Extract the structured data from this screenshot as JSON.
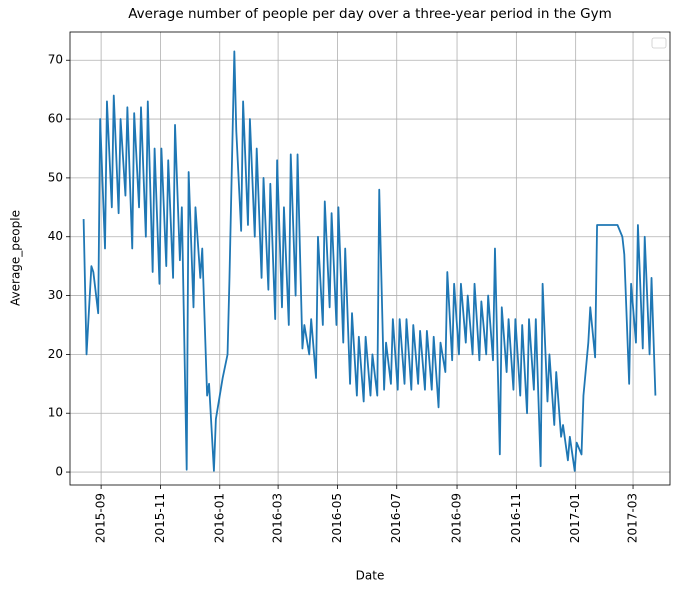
{
  "chart_data": {
    "type": "line",
    "title": "Average number of people per day over a three-year period in the Gym",
    "x_label": "Date",
    "y_label": "Average_people",
    "x": [
      "2015-08-14",
      "2015-08-17",
      "2015-08-22",
      "2015-08-24",
      "2015-08-29",
      "2015-08-31",
      "2015-09-05",
      "2015-09-07",
      "2015-09-12",
      "2015-09-14",
      "2015-09-19",
      "2015-09-21",
      "2015-09-26",
      "2015-09-28",
      "2015-10-03",
      "2015-10-05",
      "2015-10-10",
      "2015-10-12",
      "2015-10-17",
      "2015-10-19",
      "2015-10-24",
      "2015-10-26",
      "2015-10-31",
      "2015-11-02",
      "2015-11-07",
      "2015-11-09",
      "2015-11-14",
      "2015-11-16",
      "2015-11-21",
      "2015-11-23",
      "2015-11-28",
      "2015-11-30",
      "2015-12-05",
      "2015-12-07",
      "2015-12-12",
      "2015-12-14",
      "2015-12-19",
      "2015-12-21",
      "2015-12-26",
      "2015-12-28",
      "2016-01-02",
      "2016-01-04",
      "2016-01-09",
      "2016-01-11",
      "2016-01-16",
      "2016-01-18",
      "2016-01-23",
      "2016-01-25",
      "2016-01-30",
      "2016-02-01",
      "2016-02-06",
      "2016-02-08",
      "2016-02-13",
      "2016-02-15",
      "2016-02-20",
      "2016-02-22",
      "2016-02-27",
      "2016-02-29",
      "2016-03-05",
      "2016-03-07",
      "2016-03-12",
      "2016-03-14",
      "2016-03-19",
      "2016-03-21",
      "2016-03-26",
      "2016-03-28",
      "2016-04-02",
      "2016-04-04",
      "2016-04-09",
      "2016-04-11",
      "2016-04-16",
      "2016-04-18",
      "2016-04-23",
      "2016-04-25",
      "2016-04-30",
      "2016-05-02",
      "2016-05-07",
      "2016-05-09",
      "2016-05-14",
      "2016-05-16",
      "2016-05-21",
      "2016-05-23",
      "2016-05-28",
      "2016-05-30",
      "2016-06-04",
      "2016-06-06",
      "2016-06-11",
      "2016-06-13",
      "2016-06-18",
      "2016-06-20",
      "2016-06-25",
      "2016-06-27",
      "2016-07-02",
      "2016-07-04",
      "2016-07-09",
      "2016-07-11",
      "2016-07-16",
      "2016-07-18",
      "2016-07-23",
      "2016-07-25",
      "2016-07-30",
      "2016-08-01",
      "2016-08-06",
      "2016-08-08",
      "2016-08-13",
      "2016-08-15",
      "2016-08-20",
      "2016-08-22",
      "2016-08-27",
      "2016-08-29",
      "2016-09-03",
      "2016-09-05",
      "2016-09-10",
      "2016-09-12",
      "2016-09-17",
      "2016-09-19",
      "2016-09-24",
      "2016-09-26",
      "2016-10-01",
      "2016-10-03",
      "2016-10-08",
      "2016-10-10",
      "2016-10-15",
      "2016-10-17",
      "2016-10-22",
      "2016-10-24",
      "2016-10-29",
      "2016-10-31",
      "2016-11-05",
      "2016-11-07",
      "2016-11-12",
      "2016-11-14",
      "2016-11-19",
      "2016-11-21",
      "2016-11-26",
      "2016-11-28",
      "2016-12-03",
      "2016-12-05",
      "2016-12-10",
      "2016-12-12",
      "2016-12-17",
      "2016-12-19",
      "2016-12-24",
      "2016-12-26",
      "2016-12-31",
      "2017-01-02",
      "2017-01-07",
      "2017-01-09",
      "2017-01-14",
      "2017-01-16",
      "2017-01-21",
      "2017-01-23",
      "2017-01-28",
      "2017-01-30",
      "2017-02-04",
      "2017-02-06",
      "2017-02-11",
      "2017-02-13",
      "2017-02-18",
      "2017-02-20",
      "2017-02-25",
      "2017-02-27",
      "2017-03-04",
      "2017-03-06",
      "2017-03-11",
      "2017-03-13",
      "2017-03-18",
      "2017-03-20",
      "2017-03-24"
    ],
    "series": [
      {
        "name": "Average_people",
        "color": "#1f77b4",
        "values": [
          43,
          20,
          35,
          34,
          27,
          60,
          38,
          63,
          45,
          64,
          44,
          60,
          47,
          62,
          38,
          61,
          45,
          62,
          40,
          63,
          34,
          55,
          32,
          55,
          35,
          53,
          33,
          59,
          36,
          45,
          0.4,
          51,
          28,
          45,
          33,
          38,
          13,
          15,
          0.2,
          9,
          14,
          16,
          20,
          33,
          71.5,
          58,
          41,
          63,
          42,
          60,
          40,
          55,
          33,
          50,
          31,
          49,
          26,
          53,
          28,
          45,
          25,
          54,
          30,
          54,
          21,
          25,
          20,
          26,
          16,
          40,
          25,
          46,
          28,
          44,
          25,
          45,
          22,
          38,
          15,
          27,
          13,
          23,
          12,
          23,
          13,
          20,
          13,
          48,
          14,
          22,
          15,
          26,
          14,
          26,
          15,
          26,
          14,
          25,
          15,
          24,
          14,
          24,
          14,
          23,
          11,
          22,
          17,
          34,
          19,
          32,
          20,
          32,
          22,
          30,
          20,
          32,
          19,
          29,
          20,
          30,
          19,
          38,
          3,
          28,
          17,
          26,
          14,
          26,
          13,
          25,
          10,
          26,
          14,
          26,
          1,
          32,
          12,
          20,
          8,
          17,
          6,
          8,
          2,
          6,
          0.2,
          5,
          3,
          13,
          22,
          28,
          19.5,
          42,
          42,
          42,
          42,
          42,
          42,
          42,
          40,
          37,
          15,
          32,
          22,
          42,
          21,
          40,
          20,
          33,
          13
        ]
      }
    ],
    "xlim": [
      "2015-07-31",
      "2017-04-08"
    ],
    "xticks": [
      {
        "value": "2015-09-01",
        "label": "2015-09"
      },
      {
        "value": "2015-11-01",
        "label": "2015-11"
      },
      {
        "value": "2016-01-01",
        "label": "2016-01"
      },
      {
        "value": "2016-03-01",
        "label": "2016-03"
      },
      {
        "value": "2016-05-01",
        "label": "2016-05"
      },
      {
        "value": "2016-07-01",
        "label": "2016-07"
      },
      {
        "value": "2016-09-01",
        "label": "2016-09"
      },
      {
        "value": "2016-11-01",
        "label": "2016-11"
      },
      {
        "value": "2017-01-01",
        "label": "2017-01"
      },
      {
        "value": "2017-03-01",
        "label": "2017-03"
      }
    ],
    "ylim": [
      -2.2,
      74.8
    ],
    "yticks": [
      0,
      10,
      20,
      30,
      40,
      50,
      60,
      70
    ],
    "grid": true
  }
}
